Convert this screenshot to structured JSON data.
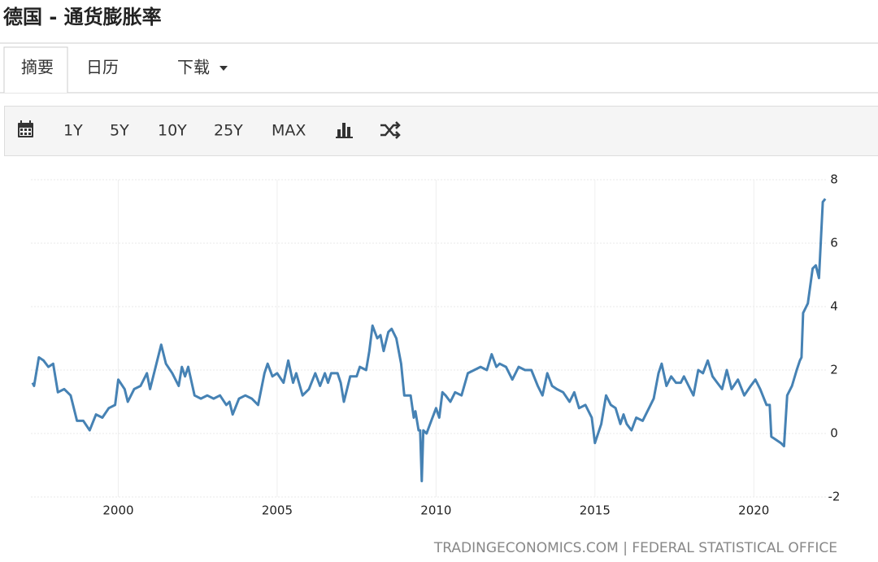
{
  "title": "德国 - 通货膨胀率",
  "tabs": [
    "摘要",
    "日历",
    "下载"
  ],
  "toolbar": [
    "1Y",
    "5Y",
    "10Y",
    "25Y",
    "MAX"
  ],
  "source": "TRADINGECONOMICS.COM | FEDERAL STATISTICAL OFFICE",
  "chart_data": {
    "type": "line",
    "x": [
      1997.3,
      1997.35,
      1997.5,
      1997.65,
      1997.8,
      1997.95,
      1998.1,
      1998.3,
      1998.5,
      1998.7,
      1998.9,
      1999.1,
      1999.3,
      1999.5,
      1999.7,
      1999.9,
      2000.0,
      2000.2,
      2000.3,
      2000.5,
      2000.7,
      2000.9,
      2001.0,
      2001.2,
      2001.35,
      2001.5,
      2001.7,
      2001.9,
      2002.0,
      2002.1,
      2002.2,
      2002.4,
      2002.6,
      2002.8,
      2003.0,
      2003.2,
      2003.4,
      2003.5,
      2003.6,
      2003.8,
      2004.0,
      2004.2,
      2004.4,
      2004.6,
      2004.7,
      2004.85,
      2005.0,
      2005.2,
      2005.35,
      2005.5,
      2005.6,
      2005.8,
      2006.0,
      2006.2,
      2006.35,
      2006.5,
      2006.6,
      2006.7,
      2006.9,
      2007.0,
      2007.1,
      2007.3,
      2007.5,
      2007.6,
      2007.8,
      2007.9,
      2008.0,
      2008.15,
      2008.25,
      2008.35,
      2008.5,
      2008.6,
      2008.75,
      2008.9,
      2009.0,
      2009.2,
      2009.3,
      2009.35,
      2009.45,
      2009.5,
      2009.55,
      2009.6,
      2009.7,
      2009.85,
      2010.0,
      2010.1,
      2010.2,
      2010.3,
      2010.45,
      2010.6,
      2010.8,
      2011.0,
      2011.2,
      2011.4,
      2011.6,
      2011.75,
      2011.9,
      2012.0,
      2012.2,
      2012.4,
      2012.6,
      2012.8,
      2013.0,
      2013.2,
      2013.35,
      2013.5,
      2013.65,
      2013.8,
      2014.0,
      2014.2,
      2014.35,
      2014.5,
      2014.7,
      2014.9,
      2015.0,
      2015.2,
      2015.35,
      2015.5,
      2015.65,
      2015.8,
      2015.9,
      2016.0,
      2016.15,
      2016.3,
      2016.5,
      2016.7,
      2016.85,
      2017.0,
      2017.1,
      2017.25,
      2017.4,
      2017.55,
      2017.7,
      2017.8,
      2017.95,
      2018.1,
      2018.25,
      2018.4,
      2018.55,
      2018.7,
      2018.85,
      2019.0,
      2019.15,
      2019.3,
      2019.5,
      2019.7,
      2019.9,
      2020.05,
      2020.2,
      2020.4,
      2020.5,
      2020.55,
      2020.7,
      2020.85,
      2020.95,
      2021.05,
      2021.2,
      2021.35,
      2021.45,
      2021.5,
      2021.55,
      2021.7,
      2021.85,
      2021.95,
      2022.05,
      2022.17,
      2022.25
    ],
    "values": [
      1.6,
      1.5,
      2.4,
      2.3,
      2.1,
      2.2,
      1.3,
      1.4,
      1.2,
      0.4,
      0.4,
      0.1,
      0.6,
      0.5,
      0.8,
      0.9,
      1.7,
      1.4,
      1.0,
      1.4,
      1.5,
      1.9,
      1.4,
      2.2,
      2.8,
      2.2,
      1.9,
      1.5,
      2.1,
      1.8,
      2.1,
      1.2,
      1.1,
      1.2,
      1.1,
      1.2,
      0.9,
      1.0,
      0.6,
      1.1,
      1.2,
      1.1,
      0.9,
      1.9,
      2.2,
      1.8,
      1.9,
      1.6,
      2.3,
      1.6,
      1.9,
      1.2,
      1.4,
      1.9,
      1.5,
      1.9,
      1.6,
      1.9,
      1.9,
      1.6,
      1.0,
      1.8,
      1.8,
      2.1,
      2.0,
      2.6,
      3.4,
      3.0,
      3.1,
      2.6,
      3.2,
      3.3,
      3.0,
      2.2,
      1.2,
      1.2,
      0.5,
      0.7,
      0.1,
      0.1,
      -1.5,
      0.1,
      0.0,
      0.4,
      0.8,
      0.5,
      1.3,
      1.2,
      1.0,
      1.3,
      1.2,
      1.9,
      2.0,
      2.1,
      2.0,
      2.5,
      2.1,
      2.2,
      2.1,
      1.7,
      2.1,
      2.0,
      2.0,
      1.5,
      1.2,
      1.9,
      1.5,
      1.4,
      1.3,
      1.0,
      1.3,
      0.8,
      0.9,
      0.5,
      -0.3,
      0.3,
      1.2,
      0.9,
      0.8,
      0.3,
      0.6,
      0.3,
      0.1,
      0.5,
      0.4,
      0.8,
      1.1,
      1.9,
      2.2,
      1.5,
      1.8,
      1.6,
      1.6,
      1.8,
      1.5,
      1.2,
      2.0,
      1.9,
      2.3,
      1.8,
      1.6,
      1.4,
      2.0,
      1.4,
      1.7,
      1.2,
      1.5,
      1.7,
      1.4,
      0.9,
      0.9,
      -0.1,
      -0.2,
      -0.3,
      -0.4,
      1.2,
      1.5,
      2.0,
      2.3,
      2.4,
      3.8,
      4.1,
      5.2,
      5.3,
      4.9,
      7.3,
      7.4
    ],
    "color": "#4682b4",
    "xlim": [
      1997.25,
      2022.27
    ],
    "xticks": [
      2000,
      2005,
      2010,
      2015,
      2020
    ],
    "ylim": [
      -2,
      8
    ],
    "yticks": [
      -2,
      0,
      2,
      4,
      6,
      8
    ],
    "grid": true
  }
}
